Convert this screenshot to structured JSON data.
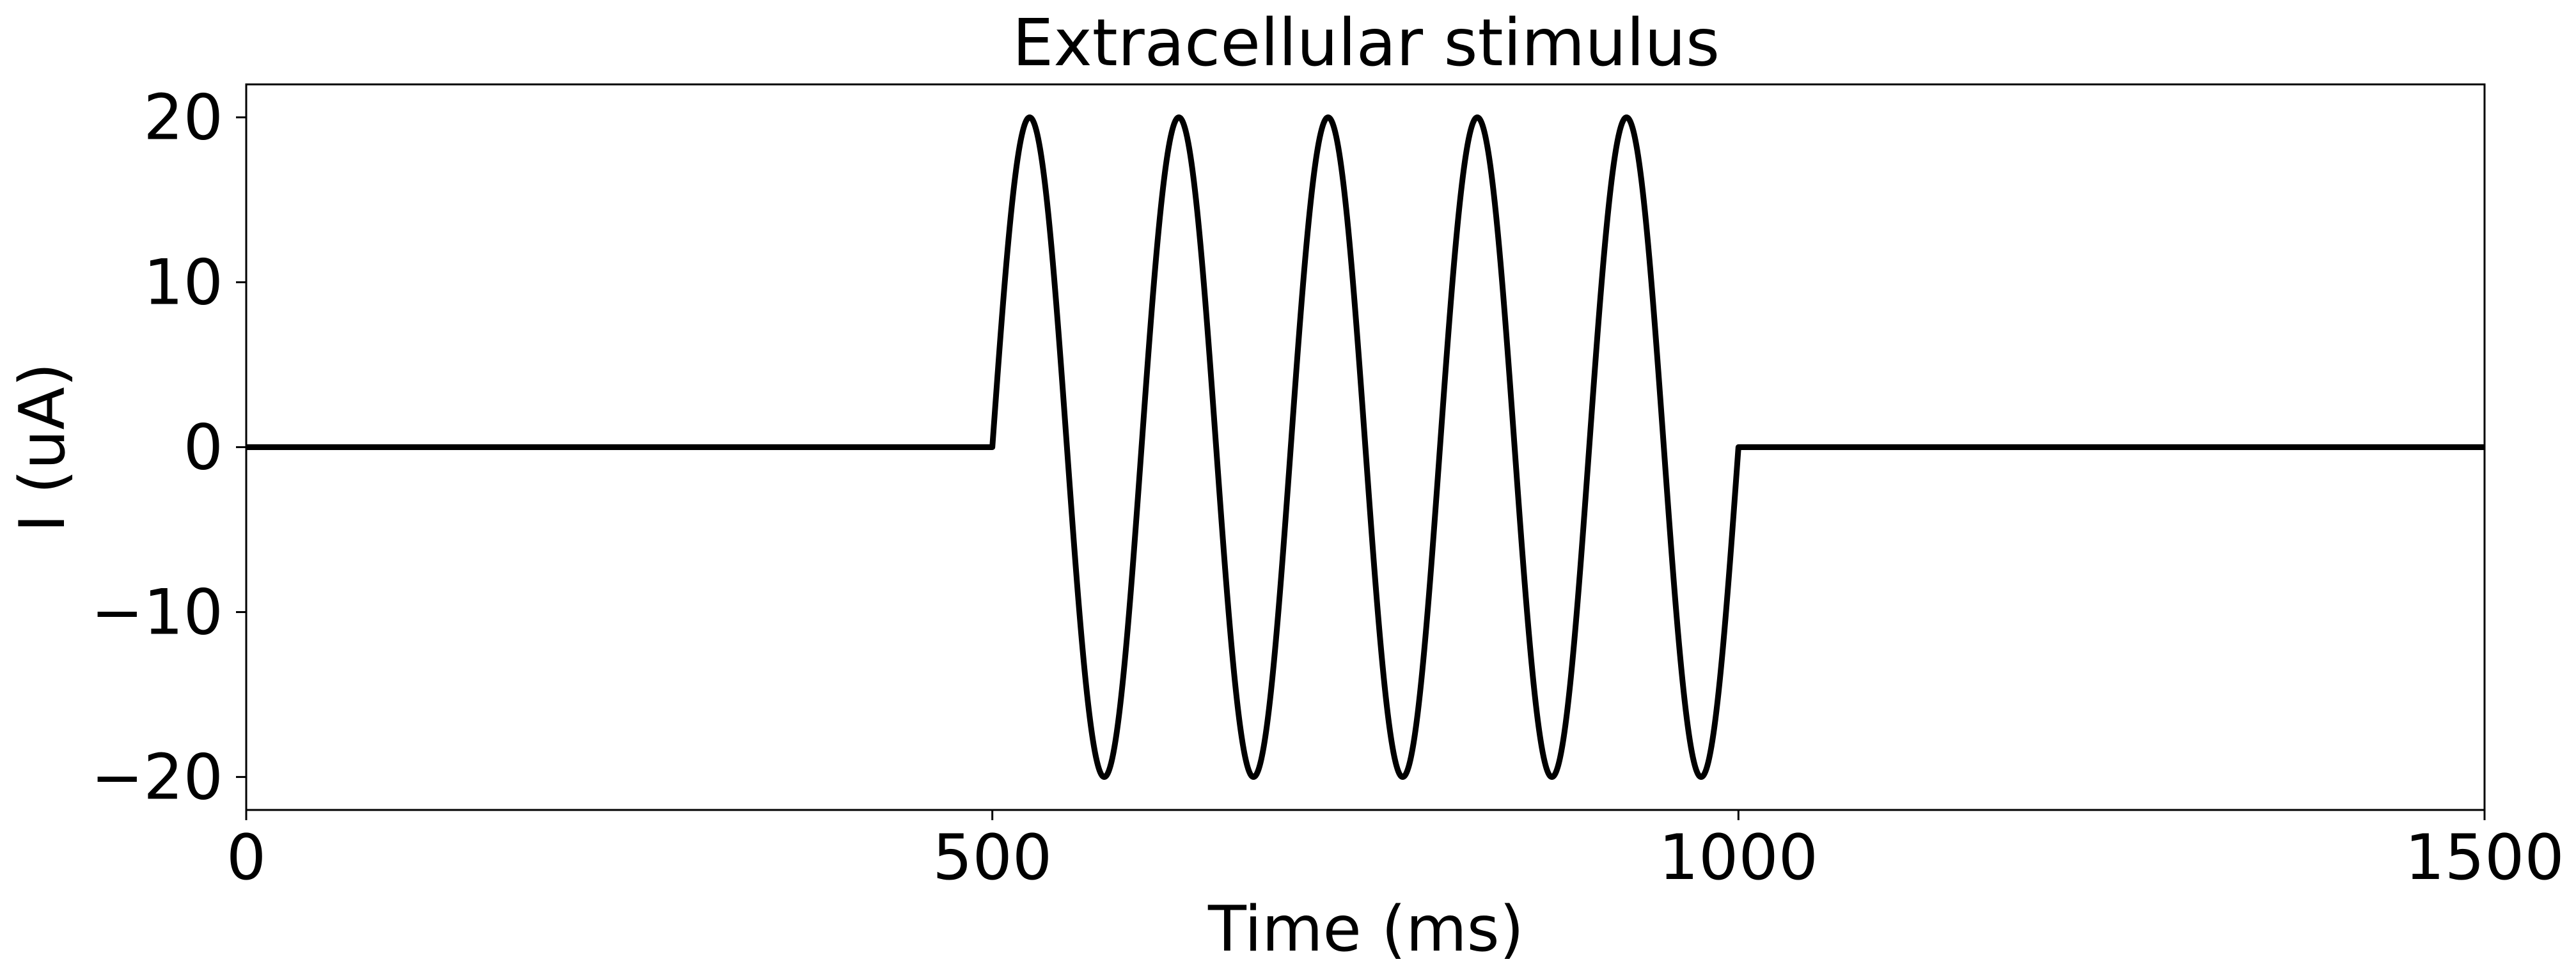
{
  "chart_data": {
    "type": "line",
    "title": "Extracellular stimulus",
    "xlabel": "Time (ms)",
    "ylabel": "I (uA)",
    "xlim": [
      0,
      1500
    ],
    "ylim": [
      -22,
      22
    ],
    "xticks": [
      0,
      500,
      1000,
      1500
    ],
    "xtick_labels": [
      "0",
      "500",
      "1000",
      "1500"
    ],
    "yticks": [
      20,
      10,
      0,
      -10,
      -20
    ],
    "ytick_labels": [
      "20",
      "10",
      "0",
      "−10",
      "−20"
    ],
    "grid": false,
    "series": [
      {
        "color": "#000000",
        "description_points": [
          {
            "t": 0,
            "i": 0
          },
          {
            "t": 500,
            "i": 0
          },
          {
            "t": 525,
            "i": 20
          },
          {
            "t": 575,
            "i": -20
          },
          {
            "t": 625,
            "i": 20
          },
          {
            "t": 675,
            "i": -20
          },
          {
            "t": 725,
            "i": 20
          },
          {
            "t": 775,
            "i": -20
          },
          {
            "t": 825,
            "i": 20
          },
          {
            "t": 875,
            "i": -20
          },
          {
            "t": 925,
            "i": 20
          },
          {
            "t": 975,
            "i": -20
          },
          {
            "t": 1000,
            "i": 0
          },
          {
            "t": 1500,
            "i": 0
          }
        ],
        "stimulus": {
          "start": 500,
          "stop": 1000,
          "amplitude": 20,
          "period": 100
        }
      }
    ]
  }
}
